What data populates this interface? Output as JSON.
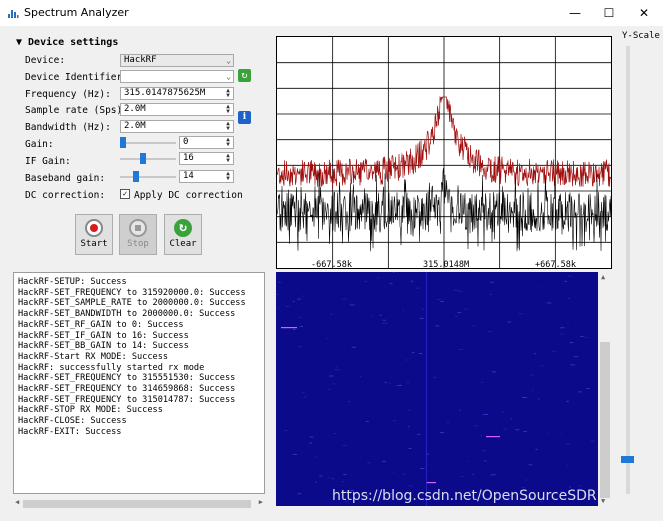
{
  "window": {
    "title": "Spectrum Analyzer",
    "controls": {
      "minimize": "—",
      "maximize": "☐",
      "close": "✕"
    }
  },
  "device_settings": {
    "header": "▼ Device settings",
    "device": {
      "label": "Device:",
      "value": "HackRF"
    },
    "identifier": {
      "label": "Device Identifier:",
      "value": ""
    },
    "frequency": {
      "label": "Frequency (Hz):",
      "value": "315.0147875625M"
    },
    "sample_rate": {
      "label": "Sample rate (Sps):",
      "value": "2.0M"
    },
    "bandwidth": {
      "label": "Bandwidth (Hz):",
      "value": "2.0M"
    },
    "gain": {
      "label": "Gain:",
      "value": "0",
      "level": 0.0
    },
    "if_gain": {
      "label": "IF Gain:",
      "value": "16",
      "level": 0.4
    },
    "baseband_gain": {
      "label": "Baseband gain:",
      "value": "14",
      "level": 0.25
    },
    "dc_correction": {
      "label": "DC correction:",
      "checkbox_label": "Apply DC correction",
      "checked": true
    }
  },
  "toolbar": {
    "start_label": "Start",
    "stop_label": "Stop",
    "clear_label": "Clear"
  },
  "log_lines": [
    "HackRF-SETUP: Success",
    "HackRF-SET_FREQUENCY to 315920000.0: Success",
    "HackRF-SET_SAMPLE_RATE to 2000000.0: Success",
    "HackRF-SET_BANDWIDTH to 2000000.0: Success",
    "HackRF-SET_RF_GAIN to 0: Success",
    "HackRF-SET_IF_GAIN to 16: Success",
    "HackRF-SET_BB_GAIN to 14: Success",
    "HackRF-Start RX MODE: Success",
    "HackRF: successfully started rx mode",
    "HackRF-SET_FREQUENCY to 315551530: Success",
    "HackRF-SET_FREQUENCY to 314659868: Success",
    "HackRF-SET_FREQUENCY to 315014787: Success",
    "HackRF-STOP RX MODE: Success",
    "HackRF-CLOSE: Success",
    "HackRF-EXIT: Success"
  ],
  "spectrum": {
    "tick_labels": [
      "-667.58k",
      "315.0148M",
      "+667.58k"
    ],
    "colors": {
      "peak_hold": "#a01010",
      "live": "#000000",
      "grid": "#000000"
    }
  },
  "waterfall": {
    "colors": {
      "background": "#0a0a8a",
      "line": "#d060ff"
    }
  },
  "yscale": {
    "label": "Y-Scale",
    "level": 0.07
  },
  "watermark": "https://blog.csdn.net/OpenSourceSDR"
}
